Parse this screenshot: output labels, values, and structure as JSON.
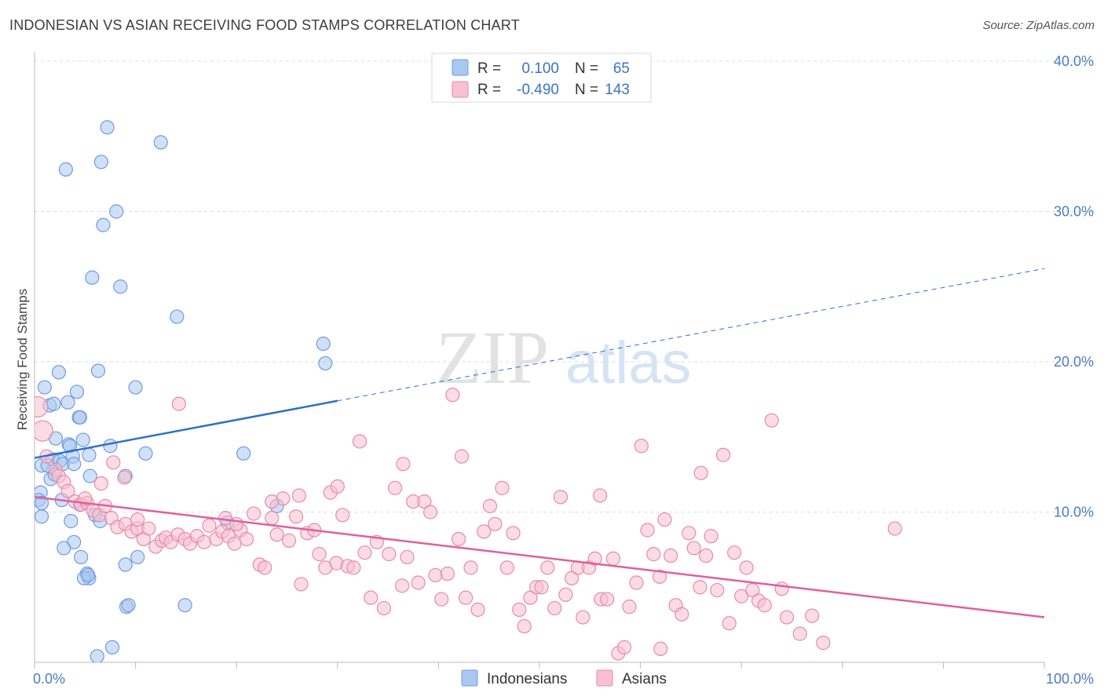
{
  "title": "INDONESIAN VS ASIAN RECEIVING FOOD STAMPS CORRELATION CHART",
  "source": "Source: ZipAtlas.com",
  "watermark": {
    "zip": "ZIP",
    "atlas": "atlas"
  },
  "legend": {
    "rows": [
      {
        "r_label": "R =",
        "r_value": "0.100",
        "n_label": "N =",
        "n_value": "65",
        "color": "#a9c8f0",
        "stroke": "#6f9be0"
      },
      {
        "r_label": "R =",
        "r_value": "-0.490",
        "n_label": "N =",
        "n_value": "143",
        "color": "#f8c0d0",
        "stroke": "#e88aa8"
      }
    ]
  },
  "bottom_legend": [
    {
      "label": "Indonesians",
      "color": "#a9c8f0",
      "stroke": "#6f9be0"
    },
    {
      "label": "Asians",
      "color": "#f8c0d0",
      "stroke": "#e88aa8"
    }
  ],
  "chart_data": {
    "type": "scatter",
    "ylabel": "Receiving Food Stamps",
    "xlabel": "",
    "xlim": [
      0,
      100
    ],
    "ylim": [
      0,
      40
    ],
    "x_tick_labels": [
      "0.0%",
      "100.0%"
    ],
    "y_ticks": [
      10,
      20,
      30,
      40
    ],
    "y_tick_labels": [
      "10.0%",
      "20.0%",
      "30.0%",
      "40.0%"
    ],
    "grid": true,
    "legend_position": "top-center",
    "series": [
      {
        "name": "Indonesians",
        "color": "#a9c8f0",
        "stroke": "#6f9be0",
        "line_color": "#2f6fcc",
        "trend": {
          "x0": 0,
          "y0": 13.6,
          "x1": 30,
          "y1": 17.4,
          "x_dash_end": 100,
          "y_dash_end": 26.2
        },
        "points": [
          [
            7.2,
            35.6
          ],
          [
            12.5,
            34.6
          ],
          [
            3.1,
            32.8
          ],
          [
            6.6,
            33.3
          ],
          [
            8.1,
            30.0
          ],
          [
            6.8,
            29.1
          ],
          [
            5.7,
            25.6
          ],
          [
            8.5,
            25.0
          ],
          [
            14.1,
            23.0
          ],
          [
            28.6,
            21.2
          ],
          [
            28.8,
            19.9
          ],
          [
            2.4,
            19.3
          ],
          [
            6.3,
            19.4
          ],
          [
            1.0,
            18.3
          ],
          [
            10.0,
            18.3
          ],
          [
            4.2,
            18.0
          ],
          [
            1.5,
            17.1
          ],
          [
            1.9,
            17.2
          ],
          [
            3.3,
            17.3
          ],
          [
            4.4,
            16.3
          ],
          [
            4.5,
            16.3
          ],
          [
            2.1,
            14.9
          ],
          [
            4.8,
            14.8
          ],
          [
            3.4,
            14.5
          ],
          [
            3.5,
            14.4
          ],
          [
            7.5,
            14.4
          ],
          [
            11.0,
            13.9
          ],
          [
            20.7,
            13.9
          ],
          [
            1.8,
            13.5
          ],
          [
            2.5,
            13.4
          ],
          [
            3.8,
            13.7
          ],
          [
            5.4,
            13.8
          ],
          [
            0.7,
            13.1
          ],
          [
            1.3,
            13.1
          ],
          [
            2.8,
            13.2
          ],
          [
            3.9,
            13.2
          ],
          [
            1.6,
            12.2
          ],
          [
            2.0,
            12.5
          ],
          [
            5.5,
            12.4
          ],
          [
            9.0,
            12.4
          ],
          [
            0.6,
            11.3
          ],
          [
            0.4,
            10.8
          ],
          [
            0.7,
            10.6
          ],
          [
            2.7,
            10.8
          ],
          [
            4.5,
            10.5
          ],
          [
            24.0,
            10.4
          ],
          [
            6.0,
            9.8
          ],
          [
            6.5,
            9.4
          ],
          [
            0.7,
            9.7
          ],
          [
            3.6,
            9.4
          ],
          [
            19.1,
            9.3
          ],
          [
            3.9,
            8.0
          ],
          [
            2.9,
            7.6
          ],
          [
            10.2,
            7.0
          ],
          [
            4.6,
            7.0
          ],
          [
            9.0,
            6.5
          ],
          [
            5.2,
            5.9
          ],
          [
            5.4,
            5.6
          ],
          [
            4.9,
            5.6
          ],
          [
            5.3,
            5.8
          ],
          [
            9.1,
            3.7
          ],
          [
            9.3,
            3.8
          ],
          [
            14.9,
            3.8
          ],
          [
            7.7,
            1.0
          ],
          [
            6.2,
            0.4
          ]
        ]
      },
      {
        "name": "Asians",
        "color": "#f8c0d0",
        "stroke": "#e88aa8",
        "line_color": "#e0609a",
        "trend": {
          "x0": 0,
          "y0": 11.0,
          "x1": 100,
          "y1": 3.0
        },
        "points": [
          [
            0.3,
            17.0
          ],
          [
            0.8,
            15.4
          ],
          [
            1.2,
            13.7
          ],
          [
            2.1,
            12.8
          ],
          [
            2.4,
            12.4
          ],
          [
            2.9,
            12.0
          ],
          [
            3.3,
            11.4
          ],
          [
            4.0,
            10.7
          ],
          [
            4.6,
            10.5
          ],
          [
            5.2,
            10.6
          ],
          [
            5.8,
            10.1
          ],
          [
            6.4,
            9.8
          ],
          [
            7.0,
            10.4
          ],
          [
            7.6,
            9.6
          ],
          [
            8.2,
            9.0
          ],
          [
            9.0,
            9.2
          ],
          [
            9.6,
            8.7
          ],
          [
            10.2,
            8.9
          ],
          [
            10.8,
            8.2
          ],
          [
            11.3,
            8.9
          ],
          [
            12.0,
            7.7
          ],
          [
            12.6,
            8.1
          ],
          [
            13.0,
            8.3
          ],
          [
            13.5,
            8.0
          ],
          [
            14.2,
            8.5
          ],
          [
            14.9,
            8.2
          ],
          [
            15.4,
            7.9
          ],
          [
            16.1,
            8.4
          ],
          [
            16.8,
            8.0
          ],
          [
            17.3,
            9.1
          ],
          [
            18.0,
            8.2
          ],
          [
            18.6,
            8.7
          ],
          [
            19.2,
            8.4
          ],
          [
            19.8,
            7.9
          ],
          [
            20.4,
            8.8
          ],
          [
            21.0,
            8.2
          ],
          [
            21.7,
            9.9
          ],
          [
            22.3,
            6.5
          ],
          [
            22.8,
            6.3
          ],
          [
            23.5,
            9.6
          ],
          [
            24.0,
            8.5
          ],
          [
            24.6,
            10.9
          ],
          [
            25.2,
            8.1
          ],
          [
            25.9,
            9.7
          ],
          [
            26.4,
            5.2
          ],
          [
            27.0,
            8.6
          ],
          [
            27.7,
            8.8
          ],
          [
            28.2,
            7.2
          ],
          [
            28.8,
            6.3
          ],
          [
            29.3,
            11.3
          ],
          [
            29.9,
            6.6
          ],
          [
            30.5,
            9.8
          ],
          [
            31.0,
            6.4
          ],
          [
            31.6,
            6.3
          ],
          [
            32.2,
            14.7
          ],
          [
            32.7,
            7.3
          ],
          [
            33.3,
            4.3
          ],
          [
            33.9,
            8.0
          ],
          [
            34.6,
            3.6
          ],
          [
            35.1,
            7.2
          ],
          [
            35.7,
            11.6
          ],
          [
            36.4,
            5.1
          ],
          [
            36.9,
            7.0
          ],
          [
            37.5,
            10.7
          ],
          [
            38.0,
            5.3
          ],
          [
            38.6,
            10.7
          ],
          [
            39.2,
            10.0
          ],
          [
            39.7,
            5.8
          ],
          [
            40.3,
            4.2
          ],
          [
            40.9,
            5.9
          ],
          [
            41.4,
            17.8
          ],
          [
            42.0,
            8.2
          ],
          [
            42.7,
            4.3
          ],
          [
            43.2,
            6.3
          ],
          [
            43.9,
            3.5
          ],
          [
            44.5,
            8.7
          ],
          [
            45.1,
            10.4
          ],
          [
            45.6,
            9.2
          ],
          [
            46.3,
            11.6
          ],
          [
            46.8,
            6.3
          ],
          [
            47.4,
            8.6
          ],
          [
            48.0,
            3.5
          ],
          [
            48.5,
            2.4
          ],
          [
            49.1,
            4.3
          ],
          [
            49.7,
            5.0
          ],
          [
            50.2,
            5.0
          ],
          [
            50.8,
            6.3
          ],
          [
            51.5,
            3.6
          ],
          [
            52.1,
            11.0
          ],
          [
            52.6,
            4.5
          ],
          [
            53.2,
            5.6
          ],
          [
            53.8,
            6.3
          ],
          [
            54.3,
            3.0
          ],
          [
            54.9,
            6.3
          ],
          [
            55.5,
            6.9
          ],
          [
            56.1,
            4.2
          ],
          [
            56.7,
            4.2
          ],
          [
            57.3,
            6.9
          ],
          [
            57.8,
            0.6
          ],
          [
            58.4,
            1.0
          ],
          [
            58.9,
            3.7
          ],
          [
            59.6,
            5.3
          ],
          [
            60.1,
            14.4
          ],
          [
            60.7,
            8.8
          ],
          [
            61.3,
            7.2
          ],
          [
            61.9,
            5.7
          ],
          [
            62.4,
            9.5
          ],
          [
            63.0,
            7.1
          ],
          [
            63.5,
            3.8
          ],
          [
            64.1,
            3.2
          ],
          [
            64.8,
            8.6
          ],
          [
            65.3,
            7.6
          ],
          [
            65.9,
            5.0
          ],
          [
            66.5,
            7.1
          ],
          [
            67.0,
            8.4
          ],
          [
            67.6,
            4.8
          ],
          [
            68.2,
            13.8
          ],
          [
            68.8,
            2.6
          ],
          [
            69.3,
            7.3
          ],
          [
            70.0,
            4.4
          ],
          [
            70.5,
            6.3
          ],
          [
            71.1,
            4.8
          ],
          [
            71.7,
            4.1
          ],
          [
            72.3,
            3.8
          ],
          [
            73.0,
            16.1
          ],
          [
            74.0,
            4.9
          ],
          [
            74.5,
            3.0
          ],
          [
            75.8,
            1.9
          ],
          [
            77.0,
            3.1
          ],
          [
            78.1,
            1.3
          ],
          [
            85.2,
            8.9
          ],
          [
            62.0,
            0.9
          ],
          [
            6.6,
            11.9
          ],
          [
            8.9,
            12.3
          ],
          [
            10.2,
            9.5
          ],
          [
            14.3,
            17.2
          ],
          [
            18.9,
            9.6
          ],
          [
            23.5,
            10.7
          ],
          [
            26.2,
            11.1
          ],
          [
            7.8,
            13.3
          ],
          [
            5.0,
            10.9
          ],
          [
            20.0,
            9.2
          ],
          [
            30.0,
            11.7
          ],
          [
            36.5,
            13.2
          ],
          [
            42.3,
            13.7
          ],
          [
            56.0,
            11.1
          ],
          [
            66.0,
            12.6
          ]
        ]
      }
    ]
  }
}
